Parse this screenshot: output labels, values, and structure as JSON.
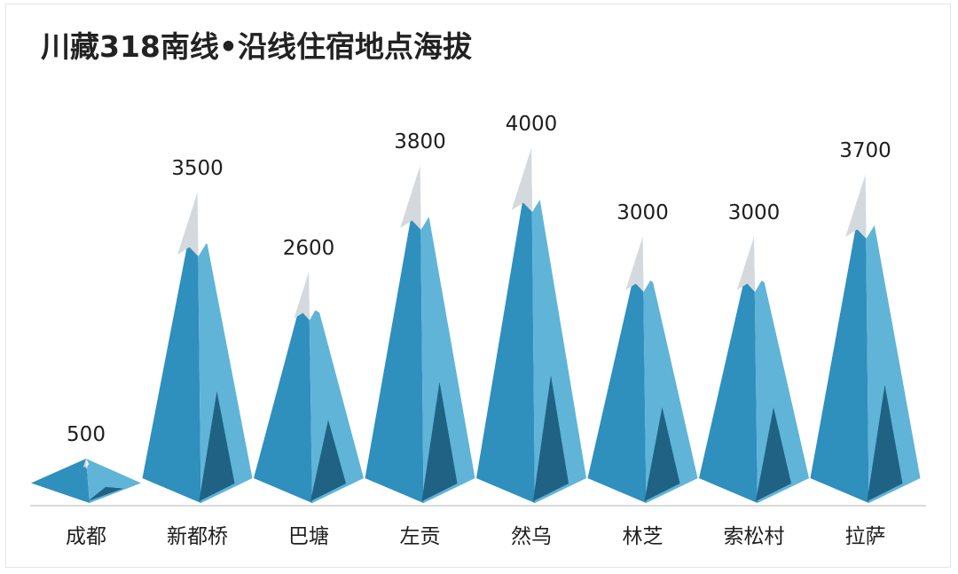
{
  "chart_data": {
    "type": "bar",
    "title": "川藏318南线•沿线住宿地点海拔",
    "categories": [
      "成都",
      "新都桥",
      "巴塘",
      "左贡",
      "然乌",
      "林芝",
      "索松村",
      "拉萨"
    ],
    "values": [
      500,
      3500,
      2600,
      3800,
      4000,
      3000,
      3000,
      3700
    ],
    "value_labels": [
      "500",
      "3500",
      "2600",
      "3800",
      "4000",
      "3000",
      "3000",
      "3700"
    ],
    "xlabel": "",
    "ylabel": "",
    "ylim": [
      0,
      4000
    ],
    "grid": false,
    "legend": "none",
    "mark_style": "mountain-peak",
    "colors": {
      "light_face": "#5fb4d8",
      "dark_face": "#2f8fbd",
      "shadow": "#1f6283",
      "snow_left": "#d4d9dd",
      "snow_right": "#ffffff",
      "baseline": "#cfcfcf"
    }
  }
}
